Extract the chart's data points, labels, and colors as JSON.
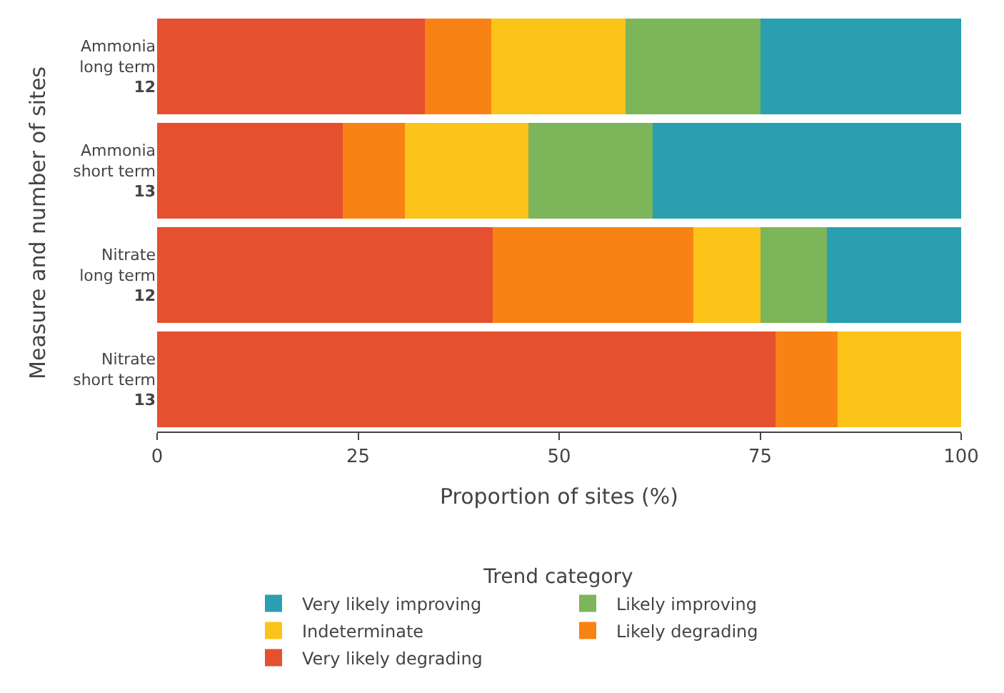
{
  "chart_data": {
    "type": "bar",
    "orientation": "horizontal",
    "stacked": true,
    "xlabel": "Proportion of sites (%)",
    "ylabel": "Measure and number of sites",
    "legend_title": "Trend category",
    "categories": [
      "Ammonia\nlong term\n12",
      "Ammonia\nshort term\n13",
      "Nitrate\nlong term\n12",
      "Nitrate\nshort term\n13"
    ],
    "series": [
      {
        "name": "Very likely degrading",
        "color": "#e5502f",
        "values": [
          33.3,
          23.1,
          41.7,
          76.9
        ]
      },
      {
        "name": "Likely degrading",
        "color": "#f88314",
        "values": [
          8.3,
          7.7,
          25.0,
          7.7
        ]
      },
      {
        "name": "Indeterminate",
        "color": "#fcc419",
        "values": [
          16.7,
          15.4,
          8.3,
          15.4
        ]
      },
      {
        "name": "Likely improving",
        "color": "#7cb55a",
        "values": [
          16.7,
          15.4,
          8.3,
          0
        ]
      },
      {
        "name": "Very likely improving",
        "color": "#2a9fb0",
        "values": [
          25.0,
          38.5,
          16.7,
          0
        ]
      }
    ],
    "xlim": [
      0,
      100
    ],
    "xticks": [
      0,
      25,
      50,
      75,
      100
    ],
    "legend": "bottom"
  }
}
